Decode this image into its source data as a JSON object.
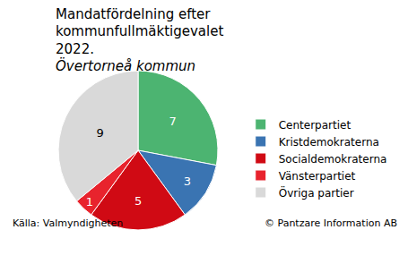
{
  "chart_data": {
    "type": "pie",
    "title": "Mandatfördelning efter kommunfullmäktigevalet 2022.",
    "subtitle": "Övertorneå kommun",
    "categories": [
      "Centerpartiet",
      "Kristdemokraterna",
      "Socialdemokraterna",
      "Vänsterpartiet",
      "Övriga partier"
    ],
    "values": [
      7,
      3,
      5,
      1,
      9
    ],
    "colors": [
      "#4cb471",
      "#3a74b2",
      "#d00a14",
      "#e8232d",
      "#d9d9d9"
    ],
    "data_labels": true,
    "legend": "right",
    "annotations": [
      "Källa: Valmyndigheten",
      "© Pantzare Information AB"
    ]
  }
}
